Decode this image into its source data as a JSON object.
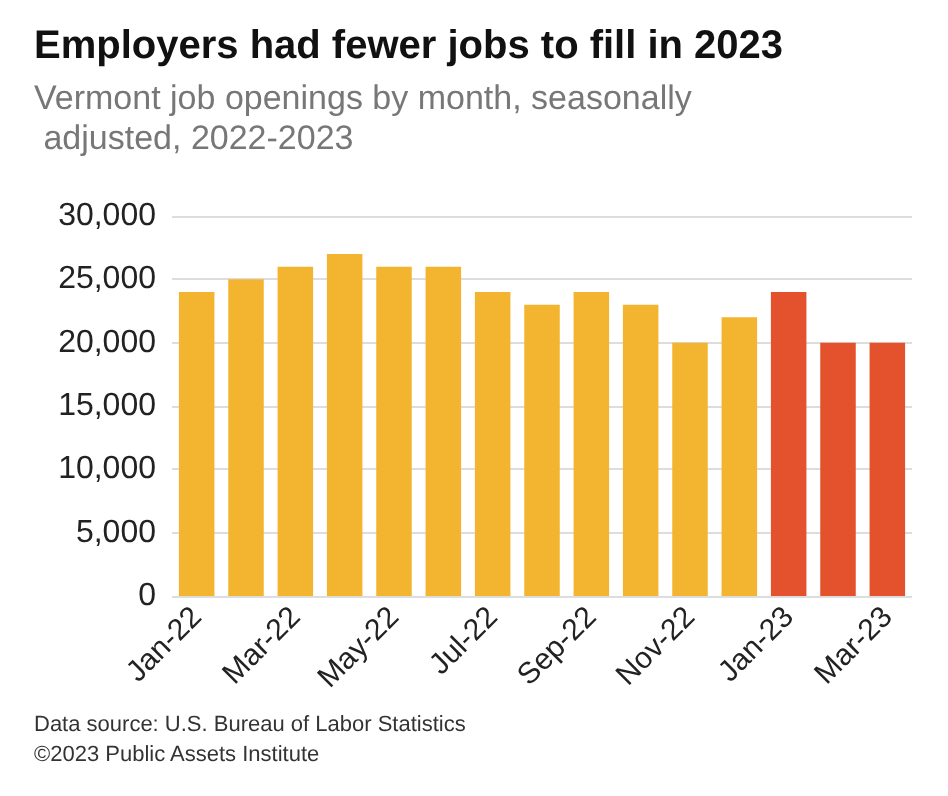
{
  "chart_data": {
    "type": "bar",
    "title": "Employers had fewer jobs to fill in 2023",
    "subtitle": "Vermont job openings by month, seasonally adjusted, 2022-2023",
    "categories": [
      "Jan-22",
      null,
      "Mar-22",
      null,
      "May-22",
      null,
      "Jul-22",
      null,
      "Sep-22",
      null,
      "Nov-22",
      null,
      "Jan-23",
      null,
      "Mar-23"
    ],
    "values": [
      24000,
      25000,
      26000,
      27000,
      26000,
      26000,
      24000,
      23000,
      24000,
      23000,
      20000,
      22000,
      24000,
      20000,
      20000
    ],
    "colors": [
      "#f3b52f",
      "#f3b52f",
      "#f3b52f",
      "#f3b52f",
      "#f3b52f",
      "#f3b52f",
      "#f3b52f",
      "#f3b52f",
      "#f3b52f",
      "#f3b52f",
      "#f3b52f",
      "#f3b52f",
      "#e3522c",
      "#e3522c",
      "#e3522c"
    ],
    "ylim": [
      0,
      30000
    ],
    "yticks": [
      {
        "value": 0,
        "label": "0"
      },
      {
        "value": 5000,
        "label": "5,000"
      },
      {
        "value": 10000,
        "label": "10,000"
      },
      {
        "value": 15000,
        "label": "15,000"
      },
      {
        "value": 20000,
        "label": "20,000"
      },
      {
        "value": 25000,
        "label": "25,000"
      },
      {
        "value": 30000,
        "label": "30,000"
      }
    ],
    "grid": "y",
    "annotations": [
      "Data source: U.S. Bureau of Labor Statistics",
      "©2023 Public Assets Institute"
    ]
  }
}
